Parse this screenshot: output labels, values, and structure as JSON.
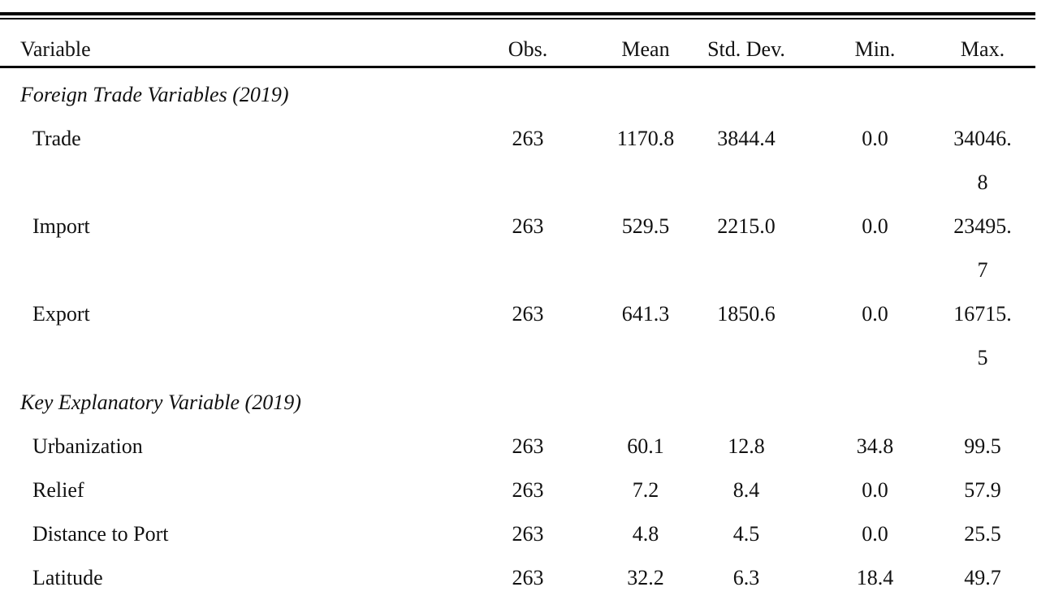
{
  "header": {
    "variable": "Variable",
    "obs": "Obs.",
    "mean": "Mean",
    "sd": "Std. Dev.",
    "min": "Min.",
    "max": "Max."
  },
  "sections": [
    {
      "title": "Foreign Trade Variables (2019)",
      "rows": [
        {
          "name": "Trade",
          "obs": "263",
          "mean": "1170.8",
          "sd": "3844.4",
          "min": "0.0",
          "max_line1": "34046.",
          "max_line2": "8"
        },
        {
          "name": "Import",
          "obs": "263",
          "mean": "529.5",
          "sd": "2215.0",
          "min": "0.0",
          "max_line1": "23495.",
          "max_line2": "7"
        },
        {
          "name": "Export",
          "obs": "263",
          "mean": "641.3",
          "sd": "1850.6",
          "min": "0.0",
          "max_line1": "16715.",
          "max_line2": "5"
        }
      ]
    },
    {
      "title": "Key Explanatory Variable (2019)",
      "rows": [
        {
          "name": "Urbanization",
          "obs": "263",
          "mean": "60.1",
          "sd": "12.8",
          "min": "34.8",
          "max": "99.5"
        },
        {
          "name": "Relief",
          "obs": "263",
          "mean": "7.2",
          "sd": "8.4",
          "min": "0.0",
          "max": "57.9"
        },
        {
          "name": "Distance to Port",
          "obs": "263",
          "mean": "4.8",
          "sd": "4.5",
          "min": "0.0",
          "max": "25.5"
        },
        {
          "name": "Latitude",
          "obs": "263",
          "mean": "32.2",
          "sd": "6.3",
          "min": "18.4",
          "max": "49.7"
        }
      ]
    }
  ]
}
